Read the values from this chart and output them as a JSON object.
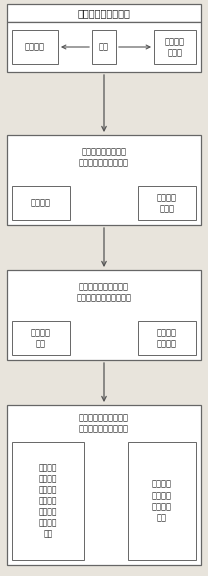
{
  "bg_color": "#e8e4dc",
  "box_color": "#ffffff",
  "border_color": "#666666",
  "text_color": "#222222",
  "arrow_color": "#555555",
  "font_size": 6.5,
  "blocks": {
    "top_title": "二元水循环模型建立",
    "hydro": "水文模型",
    "couple": "耦合",
    "water_res": "水资源配\n置模型",
    "b1_title": "判断不同因素作用下\n水循环要素的演变情况",
    "b1_sub1": "自然因素",
    "b1_sub2": "人类活动\n等因素",
    "b2_title": "计算不同情景下水循环\n要素演变的定量评价指标",
    "b2_sub1": "指纹识别\n技术",
    "b2_sub2": "蒙特卡罗\n统计方法",
    "b3_title": "定量区分不同因素在水\n循环演变过程中的贡献",
    "b3_sub1": "自然因素\n和人类活\n动分别作\n用下水循\n环要素演\n变的信号\n强度",
    "b3_sub2": "实际水循\n环要素演\n变的信号\n强度"
  }
}
